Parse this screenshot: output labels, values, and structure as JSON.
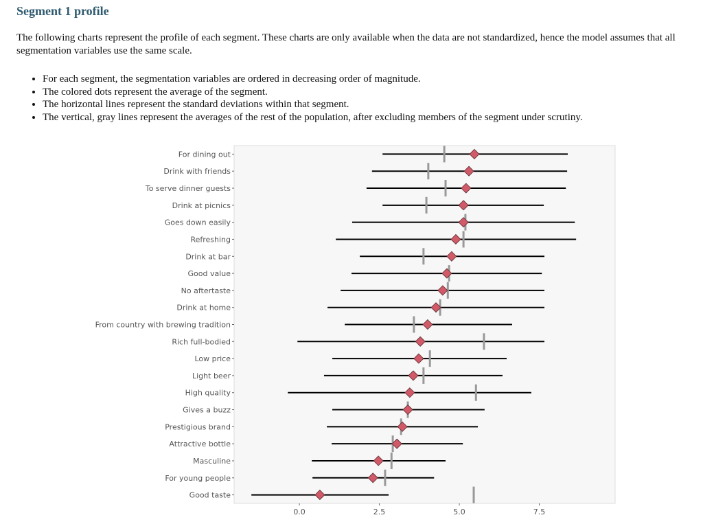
{
  "title": "Segment 1 profile",
  "intro": "The following charts represent the profile of each segment. These charts are only available when the data are not standardized, hence the model assumes that all segmentation variables use the same scale.",
  "bullets": [
    "For each segment, the segmentation variables are ordered in decreasing order of magnitude.",
    "The colored dots represent the average of the segment.",
    "The horizontal lines represent the standard deviations within that segment.",
    "The vertical, gray lines represent the averages of the rest of the population, after excluding members of the segment under scrutiny."
  ],
  "chart_data": {
    "type": "scatter",
    "xlim": [
      -2.04,
      9.87
    ],
    "xticks": [
      0,
      2.5,
      5,
      7.5
    ],
    "xtick_labels": [
      "0.0",
      "2.5",
      "5.0",
      "7.5"
    ],
    "grid": false,
    "colors": {
      "segment_mean": "#d05a68",
      "rest_mean": "#999999",
      "sd_line": "#000000",
      "panel": "#f7f7f7"
    },
    "rows": [
      {
        "label": "For dining out",
        "mean": 5.47,
        "low": 2.6,
        "high": 8.39,
        "rest": 4.53
      },
      {
        "label": "Drink with friends",
        "mean": 5.3,
        "low": 2.27,
        "high": 8.37,
        "rest": 4.03
      },
      {
        "label": "To serve dinner guests",
        "mean": 5.21,
        "low": 2.1,
        "high": 8.33,
        "rest": 4.57
      },
      {
        "label": "Drink at picnics",
        "mean": 5.13,
        "low": 2.6,
        "high": 7.64,
        "rest": 3.97
      },
      {
        "label": "Goes down easily",
        "mean": 5.13,
        "low": 1.65,
        "high": 8.61,
        "rest": 5.19
      },
      {
        "label": "Refreshing",
        "mean": 4.89,
        "low": 1.14,
        "high": 8.65,
        "rest": 5.13
      },
      {
        "label": "Drink at bar",
        "mean": 4.76,
        "low": 1.89,
        "high": 7.66,
        "rest": 3.88
      },
      {
        "label": "Good value",
        "mean": 4.61,
        "low": 1.63,
        "high": 7.58,
        "rest": 4.68
      },
      {
        "label": "No aftertaste",
        "mean": 4.48,
        "low": 1.29,
        "high": 7.66,
        "rest": 4.64
      },
      {
        "label": "Drink at home",
        "mean": 4.27,
        "low": 0.88,
        "high": 7.66,
        "rest": 4.4
      },
      {
        "label": "From country with brewing tradition",
        "mean": 4.01,
        "low": 1.42,
        "high": 6.65,
        "rest": 3.58
      },
      {
        "label": "Rich full-bodied",
        "mean": 3.78,
        "low": -0.06,
        "high": 7.66,
        "rest": 5.77
      },
      {
        "label": "Low price",
        "mean": 3.73,
        "low": 1.03,
        "high": 6.48,
        "rest": 4.08
      },
      {
        "label": "Light beer",
        "mean": 3.56,
        "low": 0.77,
        "high": 6.35,
        "rest": 3.88
      },
      {
        "label": "High quality",
        "mean": 3.45,
        "low": -0.36,
        "high": 7.25,
        "rest": 5.52
      },
      {
        "label": "Gives a buzz",
        "mean": 3.39,
        "low": 1.03,
        "high": 5.79,
        "rest": 3.39
      },
      {
        "label": "Prestigious brand",
        "mean": 3.22,
        "low": 0.86,
        "high": 5.58,
        "rest": 3.18
      },
      {
        "label": "Attractive bottle",
        "mean": 3.05,
        "low": 1.01,
        "high": 5.11,
        "rest": 2.92
      },
      {
        "label": "Masculine",
        "mean": 2.47,
        "low": 0.39,
        "high": 4.57,
        "rest": 2.88
      },
      {
        "label": "For young people",
        "mean": 2.3,
        "low": 0.41,
        "high": 4.21,
        "rest": 2.68
      },
      {
        "label": "Good taste",
        "mean": 0.64,
        "low": -1.5,
        "high": 2.79,
        "rest": 5.45
      }
    ]
  }
}
